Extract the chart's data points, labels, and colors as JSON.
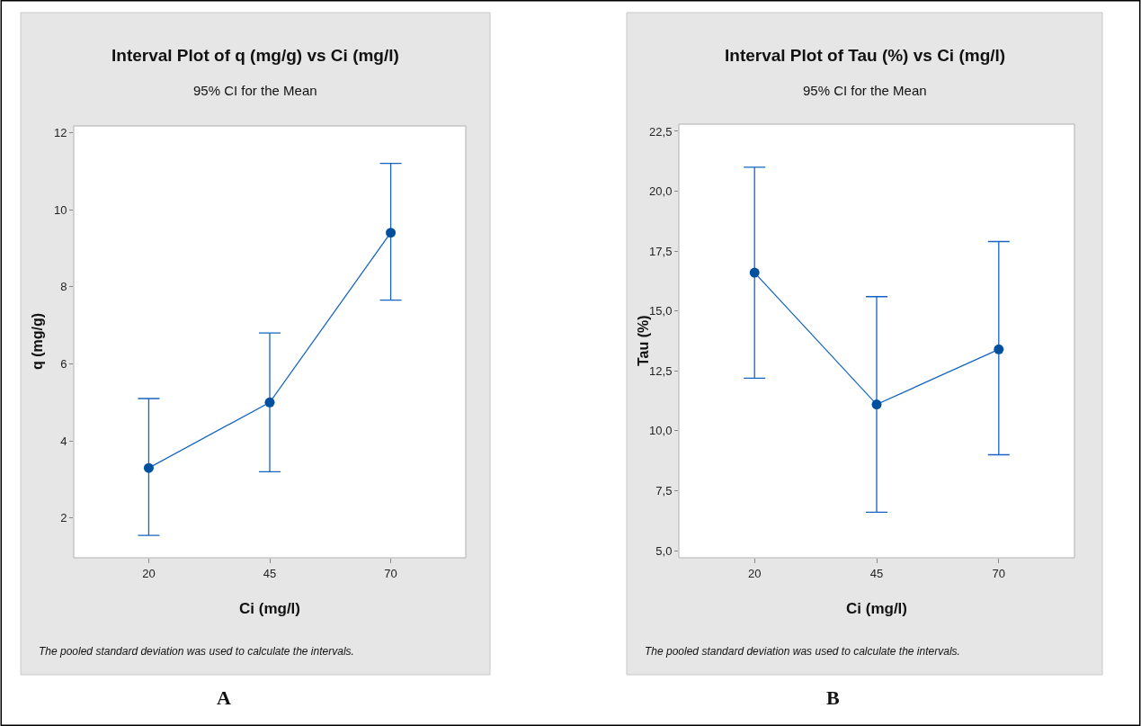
{
  "chart_data": [
    {
      "type": "line",
      "title": "Interval Plot of q (mg/g) vs Ci (mg/l)",
      "subtitle": "95% CI for the Mean",
      "xlabel": "Ci (mg/l)",
      "ylabel": "q (mg/g)",
      "categories": [
        "20",
        "45",
        "70"
      ],
      "values": [
        3.3,
        5.0,
        9.4
      ],
      "errors": [
        [
          1.55,
          5.1
        ],
        [
          3.2,
          6.8
        ],
        [
          7.65,
          11.2
        ]
      ],
      "color": "#1565c0",
      "marker": "circle",
      "line_style": "solid",
      "ylim": [
        0.97,
        12.17
      ],
      "yticks": [
        2,
        4,
        6,
        8,
        10,
        12
      ],
      "annotations": [
        "The pooled standard deviation was used to calculate the intervals.",
        "A"
      ]
    },
    {
      "type": "line",
      "title": "Interval Plot of Tau (%) vs Ci (mg/l)",
      "subtitle": "95% CI for the Mean",
      "xlabel": "Ci (mg/l)",
      "ylabel": "Tau (%)",
      "categories": [
        "20",
        "45",
        "70"
      ],
      "values": [
        16.6,
        11.1,
        13.4
      ],
      "errors": [
        [
          12.2,
          21.0
        ],
        [
          6.6,
          15.6
        ],
        [
          9.0,
          17.9
        ]
      ],
      "color": "#1565c0",
      "marker": "circle",
      "line_style": "solid",
      "ylim": [
        4.7,
        22.8
      ],
      "yticks": [
        {
          "value": 5,
          "label": "5,0"
        },
        {
          "value": 7.5,
          "label": "7,5"
        },
        {
          "value": 10,
          "label": "10,0"
        },
        {
          "value": 12.5,
          "label": "12,5"
        },
        {
          "value": 15,
          "label": "15,0"
        },
        {
          "value": 17.5,
          "label": "17,5"
        },
        {
          "value": 20,
          "label": "20,0"
        },
        {
          "value": 22.5,
          "label": "22,5"
        }
      ],
      "annotations": [
        "The pooled standard deviation was used to calculate the intervals.",
        "B"
      ]
    }
  ]
}
